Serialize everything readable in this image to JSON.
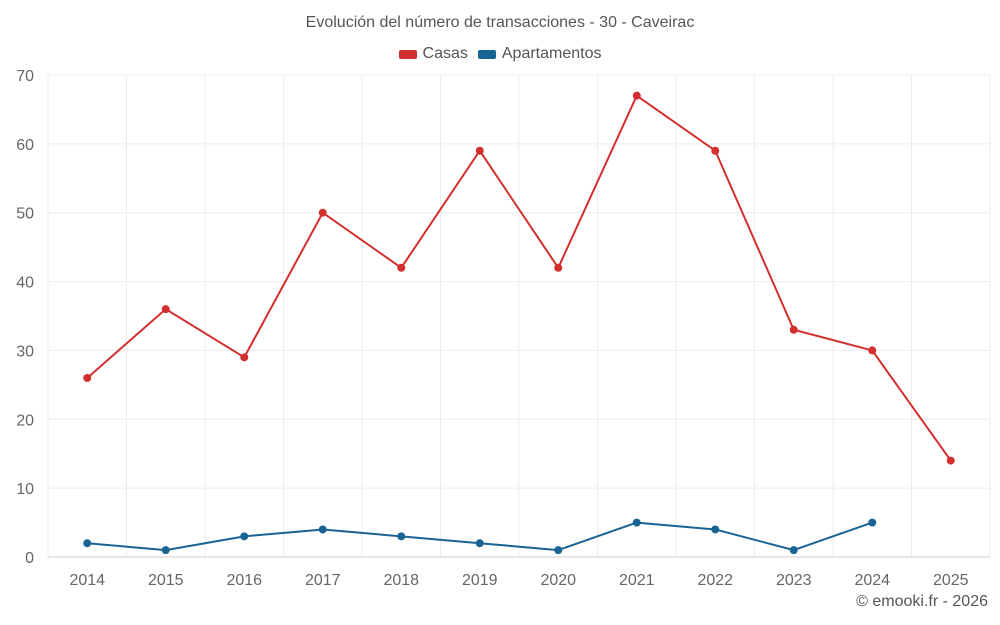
{
  "chart_data": {
    "type": "line",
    "title": "Evolución del número de transacciones - 30 - Caveirac",
    "xlabel": "",
    "ylabel": "",
    "categories": [
      "2014",
      "2015",
      "2016",
      "2017",
      "2018",
      "2019",
      "2020",
      "2021",
      "2022",
      "2023",
      "2024",
      "2025"
    ],
    "ylim": [
      0,
      70
    ],
    "yticks": [
      0,
      10,
      20,
      30,
      40,
      50,
      60,
      70
    ],
    "grid": true,
    "legend_position": "top-center",
    "series": [
      {
        "name": "Casas",
        "color": "#d32f2f",
        "values": [
          26,
          36,
          29,
          50,
          42,
          59,
          42,
          67,
          59,
          33,
          30,
          14
        ]
      },
      {
        "name": "Apartamentos",
        "color": "#1a6495",
        "values": [
          2,
          1,
          3,
          4,
          3,
          2,
          1,
          5,
          4,
          1,
          5,
          null
        ]
      }
    ]
  },
  "footer": {
    "credit": "© emooki.fr - 2026"
  }
}
